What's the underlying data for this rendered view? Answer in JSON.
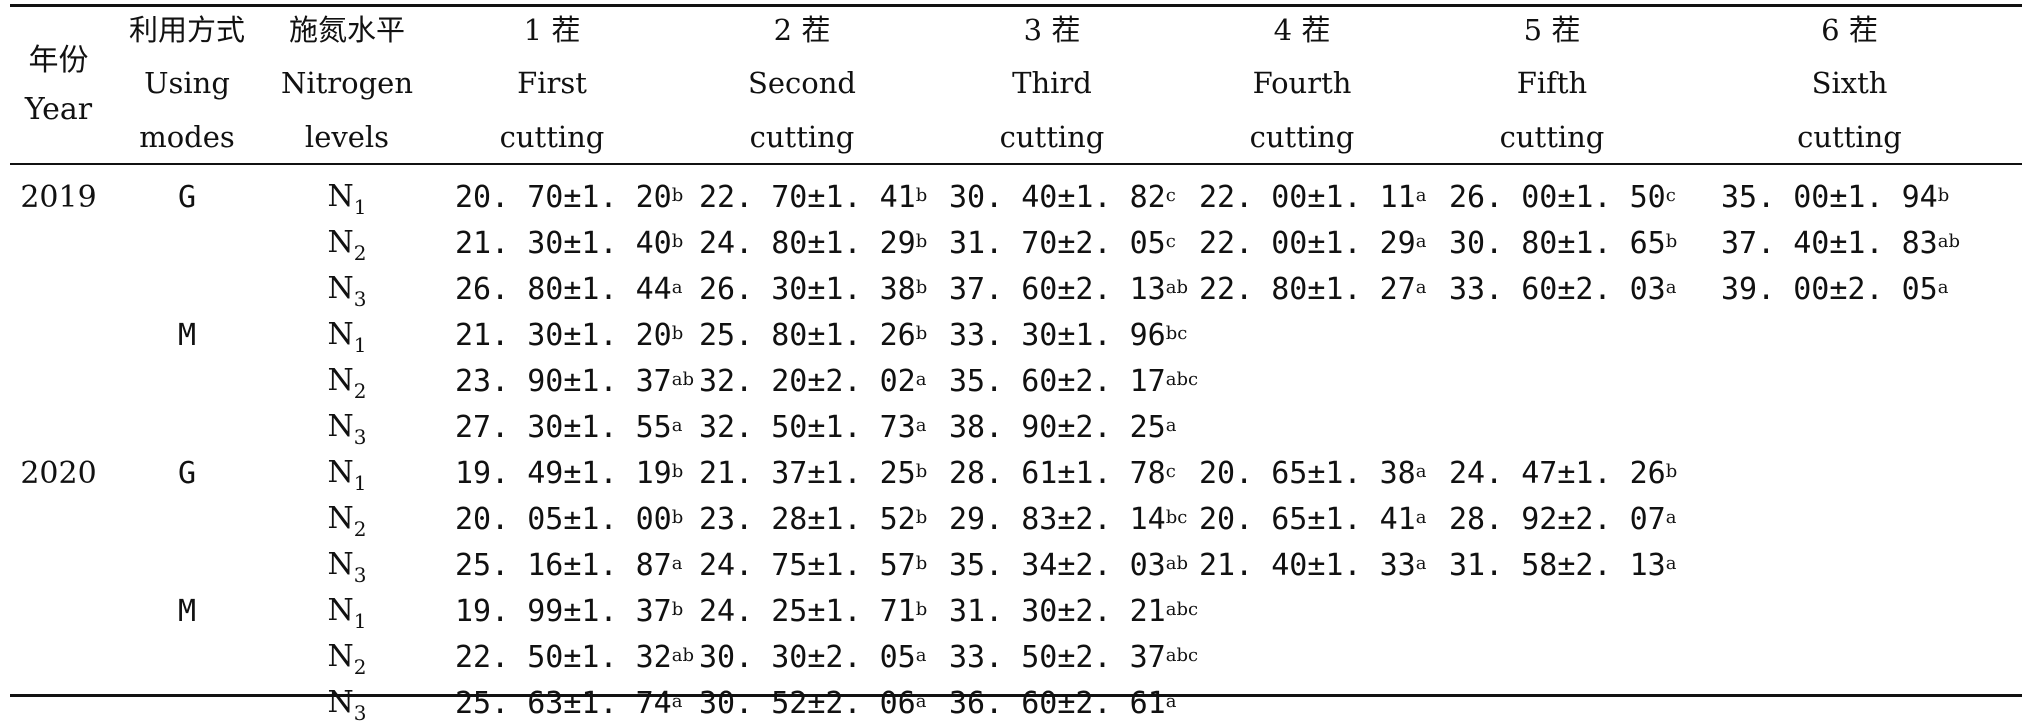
{
  "header": {
    "year": {
      "zh": "年份",
      "en": "Year"
    },
    "mode": {
      "zh": "利用方式",
      "en1": "Using",
      "en2": "modes"
    },
    "nitrogen": {
      "zh": "施氮水平",
      "en1": "Nitrogen",
      "en2": "levels"
    },
    "cuttings": [
      {
        "zh": "1 茬",
        "en1": "First",
        "en2": "cutting"
      },
      {
        "zh": "2 茬",
        "en1": "Second",
        "en2": "cutting"
      },
      {
        "zh": "3 茬",
        "en1": "Third",
        "en2": "cutting"
      },
      {
        "zh": "4 茬",
        "en1": "Fourth",
        "en2": "cutting"
      },
      {
        "zh": "5 茬",
        "en1": "Fifth",
        "en2": "cutting"
      },
      {
        "zh": "6 茬",
        "en1": "Sixth",
        "en2": "cutting"
      }
    ]
  },
  "rows": [
    {
      "year": "2019",
      "mode": "G",
      "n": "N",
      "sub": "1",
      "cells": [
        [
          "20. 70±1. 20",
          "b"
        ],
        [
          "22. 70±1. 41",
          "b"
        ],
        [
          "30. 40±1. 82",
          "c"
        ],
        [
          "22. 00±1. 11",
          "a"
        ],
        [
          "26. 00±1. 50",
          "c"
        ],
        [
          "35. 00±1. 94",
          "b"
        ]
      ]
    },
    {
      "year": "",
      "mode": "",
      "n": "N",
      "sub": "2",
      "cells": [
        [
          "21. 30±1. 40",
          "b"
        ],
        [
          "24. 80±1. 29",
          "b"
        ],
        [
          "31. 70±2. 05",
          "c"
        ],
        [
          "22. 00±1. 29",
          "a"
        ],
        [
          "30. 80±1. 65",
          "b"
        ],
        [
          "37. 40±1. 83",
          "ab"
        ]
      ]
    },
    {
      "year": "",
      "mode": "",
      "n": "N",
      "sub": "3",
      "cells": [
        [
          "26. 80±1. 44",
          "a"
        ],
        [
          "26. 30±1. 38",
          "b"
        ],
        [
          "37. 60±2. 13",
          "ab"
        ],
        [
          "22. 80±1. 27",
          "a"
        ],
        [
          "33. 60±2. 03",
          "a"
        ],
        [
          "39. 00±2. 05",
          "a"
        ]
      ]
    },
    {
      "year": "",
      "mode": "M",
      "n": "N",
      "sub": "1",
      "cells": [
        [
          "21. 30±1. 20",
          "b"
        ],
        [
          "25. 80±1. 26",
          "b"
        ],
        [
          "33. 30±1. 96",
          "bc"
        ],
        [
          "",
          ""
        ],
        [
          "",
          ""
        ],
        [
          "",
          ""
        ]
      ]
    },
    {
      "year": "",
      "mode": "",
      "n": "N",
      "sub": "2",
      "cells": [
        [
          "23. 90±1. 37",
          "ab"
        ],
        [
          "32. 20±2. 02",
          "a"
        ],
        [
          "35. 60±2. 17",
          "abc"
        ],
        [
          "",
          ""
        ],
        [
          "",
          ""
        ],
        [
          "",
          ""
        ]
      ]
    },
    {
      "year": "",
      "mode": "",
      "n": "N",
      "sub": "3",
      "cells": [
        [
          "27. 30±1. 55",
          "a"
        ],
        [
          "32. 50±1. 73",
          "a"
        ],
        [
          "38. 90±2. 25",
          "a"
        ],
        [
          "",
          ""
        ],
        [
          "",
          ""
        ],
        [
          "",
          ""
        ]
      ]
    },
    {
      "year": "2020",
      "mode": "G",
      "n": "N",
      "sub": "1",
      "cells": [
        [
          "19. 49±1. 19",
          "b"
        ],
        [
          "21. 37±1. 25",
          "b"
        ],
        [
          "28. 61±1. 78",
          "c"
        ],
        [
          "20. 65±1. 38",
          "a"
        ],
        [
          "24. 47±1. 26",
          "b"
        ],
        [
          "",
          ""
        ]
      ]
    },
    {
      "year": "",
      "mode": "",
      "n": "N",
      "sub": "2",
      "cells": [
        [
          "20. 05±1. 00",
          "b"
        ],
        [
          "23. 28±1. 52",
          "b"
        ],
        [
          "29. 83±2. 14",
          "bc"
        ],
        [
          "20. 65±1. 41",
          "a"
        ],
        [
          "28. 92±2. 07",
          "a"
        ],
        [
          "",
          ""
        ]
      ]
    },
    {
      "year": "",
      "mode": "",
      "n": "N",
      "sub": "3",
      "cells": [
        [
          "25. 16±1. 87",
          "a"
        ],
        [
          "24. 75±1. 57",
          "b"
        ],
        [
          "35. 34±2. 03",
          "ab"
        ],
        [
          "21. 40±1. 33",
          "a"
        ],
        [
          "31. 58±2. 13",
          "a"
        ],
        [
          "",
          ""
        ]
      ]
    },
    {
      "year": "",
      "mode": "M",
      "n": "N",
      "sub": "1",
      "cells": [
        [
          "19. 99±1. 37",
          "b"
        ],
        [
          "24. 25±1. 71",
          "b"
        ],
        [
          "31. 30±2. 21",
          "abc"
        ],
        [
          "",
          ""
        ],
        [
          "",
          ""
        ],
        [
          "",
          ""
        ]
      ]
    },
    {
      "year": "",
      "mode": "",
      "n": "N",
      "sub": "2",
      "cells": [
        [
          "22. 50±1. 32",
          "ab"
        ],
        [
          "30. 30±2. 05",
          "a"
        ],
        [
          "33. 50±2. 37",
          "abc"
        ],
        [
          "",
          ""
        ],
        [
          "",
          ""
        ],
        [
          "",
          ""
        ]
      ]
    },
    {
      "year": "",
      "mode": "",
      "n": "N",
      "sub": "3",
      "cells": [
        [
          "25. 63±1. 74",
          "a"
        ],
        [
          "30. 52±2. 06",
          "a"
        ],
        [
          "36. 60±2. 61",
          "a"
        ],
        [
          "",
          ""
        ],
        [
          "",
          ""
        ],
        [
          "",
          ""
        ]
      ]
    }
  ]
}
